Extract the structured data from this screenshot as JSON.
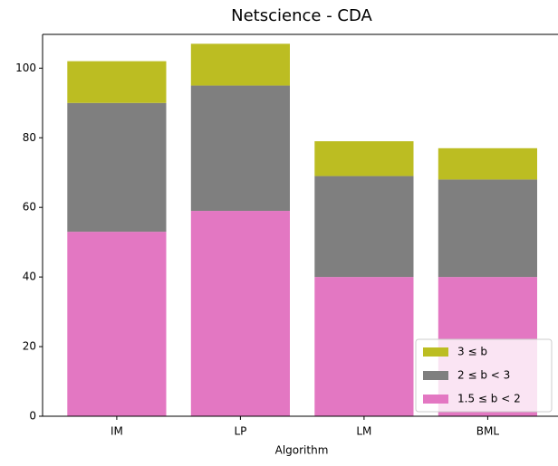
{
  "chart_data": {
    "type": "stacked_bar",
    "title": "Netscience - CDA",
    "x_label": "Algorithm",
    "categories": [
      "IM",
      "LP",
      "LM",
      "BML"
    ],
    "series": [
      {
        "name": "1.5 ≤ b < 2",
        "color": "#e377c2",
        "values": [
          53,
          59,
          40,
          40
        ]
      },
      {
        "name": "2 ≤ b < 3",
        "color": "#7f7f7f",
        "values": [
          37,
          36,
          29,
          28
        ]
      },
      {
        "name": "3 ≤ b",
        "color": "#bcbd22",
        "values": [
          12,
          12,
          10,
          9
        ]
      }
    ],
    "ylim": [
      0,
      109.7
    ],
    "yticks": [
      0,
      20,
      40,
      60,
      80,
      100
    ],
    "grid": false,
    "legend": "lower right"
  }
}
